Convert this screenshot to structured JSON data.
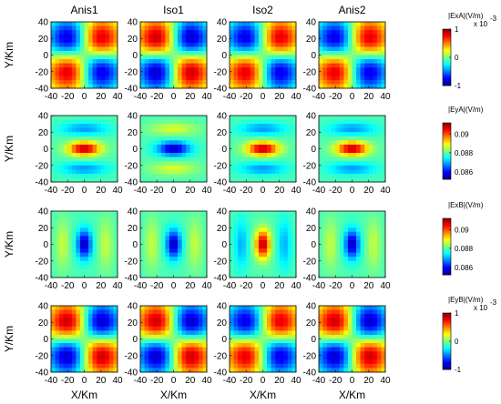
{
  "chart_data": {
    "type": "heatmap",
    "column_titles": [
      "Anis1",
      "Iso1",
      "Iso2",
      "Anis2"
    ],
    "xlabel": "X/Km",
    "ylabel": "Y/Km",
    "xlim": [
      -40,
      40
    ],
    "ylim": [
      -40,
      40
    ],
    "x_tick_labels": [
      "-40",
      "-20",
      "0",
      "20",
      "40"
    ],
    "y_tick_labels": [
      "40",
      "20",
      "0",
      "-20",
      "-40"
    ],
    "colormap": "jet",
    "colors": {
      "jet": [
        "#00008f",
        "#0000ff",
        "#00ffff",
        "#ffff00",
        "#ff0000",
        "#800000"
      ],
      "axes": "#000000"
    },
    "rows": [
      {
        "colorbar_title": "|ExA|(V/m)",
        "colorbar_exponent": "x 10",
        "colorbar_exponent_power": "-3",
        "colorbar_ticks": [
          "1",
          "0",
          "-1"
        ],
        "range": [
          -1,
          1
        ],
        "panels": [
          {
            "pattern": "quadrupole",
            "sign": 1,
            "amplitude": 0.8
          },
          {
            "pattern": "quadrupole",
            "sign": -1,
            "amplitude": 0.85
          },
          {
            "pattern": "quadrupole",
            "sign": 1,
            "amplitude": 0.8
          },
          {
            "pattern": "quadrupole",
            "sign": 1,
            "amplitude": 0.8
          }
        ]
      },
      {
        "colorbar_title": "|EyA|(V/m)",
        "colorbar_ticks": [
          "0.09",
          "0.088",
          "0.086"
        ],
        "range": [
          0.0855,
          0.0915
        ],
        "panels": [
          {
            "pattern": "horizontal_blob",
            "base": 0.0882,
            "peak": 0.0912
          },
          {
            "pattern": "horizontal_blob",
            "base": 0.0882,
            "peak": 0.0858
          },
          {
            "pattern": "horizontal_blob",
            "base": 0.0882,
            "peak": 0.0912
          },
          {
            "pattern": "horizontal_blob",
            "base": 0.0882,
            "peak": 0.0912
          }
        ]
      },
      {
        "colorbar_title": "|ExB|(V/m)",
        "colorbar_ticks": [
          "0.09",
          "0.088",
          "0.086"
        ],
        "range": [
          0.0855,
          0.0915
        ],
        "panels": [
          {
            "pattern": "vertical_blob",
            "base": 0.0882,
            "peak": 0.0858
          },
          {
            "pattern": "vertical_blob",
            "base": 0.0882,
            "peak": 0.0858
          },
          {
            "pattern": "vertical_blob",
            "base": 0.0882,
            "peak": 0.0912
          },
          {
            "pattern": "vertical_blob",
            "base": 0.0882,
            "peak": 0.0858
          }
        ]
      },
      {
        "colorbar_title": "|EyB|(V/m)",
        "colorbar_exponent": "x 10",
        "colorbar_exponent_power": "-3",
        "colorbar_ticks": [
          "1",
          "0",
          "-1"
        ],
        "range": [
          -1,
          1
        ],
        "panels": [
          {
            "pattern": "quadrupole",
            "sign": -1,
            "amplitude": 0.85
          },
          {
            "pattern": "quadrupole",
            "sign": -1,
            "amplitude": 0.85
          },
          {
            "pattern": "quadrupole",
            "sign": 1,
            "amplitude": 0.8
          },
          {
            "pattern": "quadrupole",
            "sign": -1,
            "amplitude": 0.85
          }
        ]
      }
    ]
  }
}
